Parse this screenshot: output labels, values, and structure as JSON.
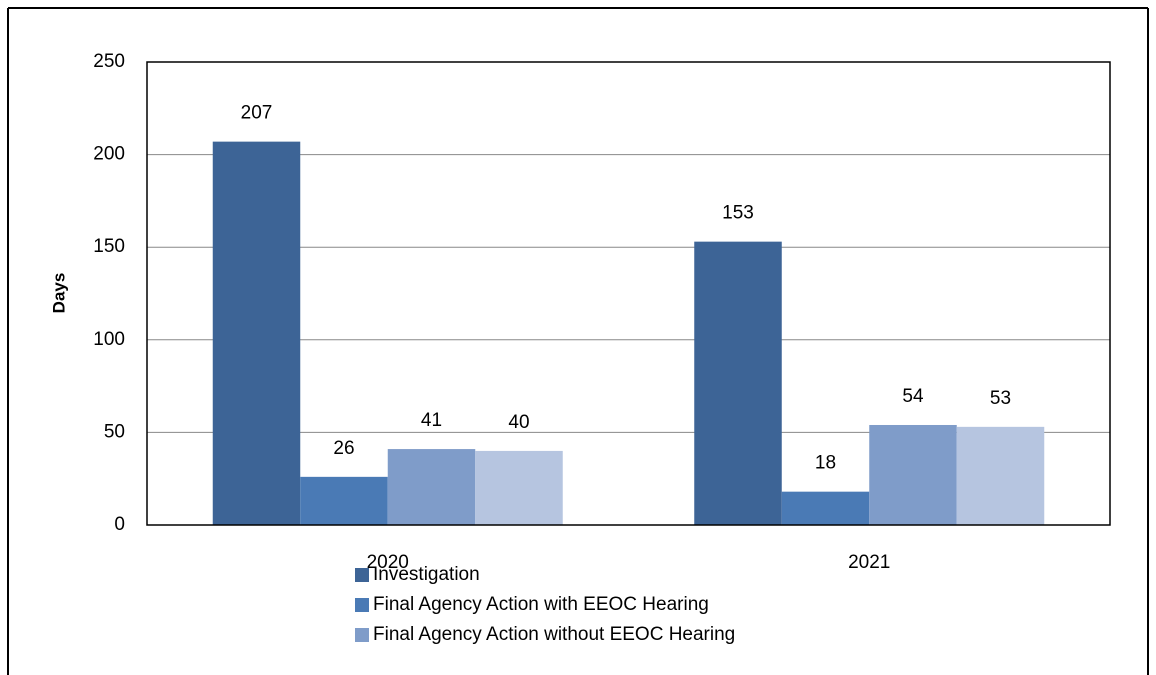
{
  "chart_data": {
    "type": "bar",
    "y_label": "Days",
    "categories": [
      "2020",
      "2021"
    ],
    "series": [
      {
        "name": "Investigation",
        "color": "#3d6496",
        "values": [
          207,
          153
        ]
      },
      {
        "name": "Final Agency Action with EEOC Hearing",
        "color": "#4a7ab5",
        "values": [
          26,
          18
        ]
      },
      {
        "name": "Final Agency Action without EEOC Hearing",
        "color": "#7f9cc9",
        "values": [
          41,
          54
        ]
      },
      {
        "color": "#b6c5e0",
        "values": [
          40,
          53
        ]
      }
    ],
    "ylim": [
      0,
      250
    ],
    "yticks": [
      0,
      50,
      100,
      150,
      200,
      250
    ],
    "grid": true,
    "legend": "bottom"
  }
}
